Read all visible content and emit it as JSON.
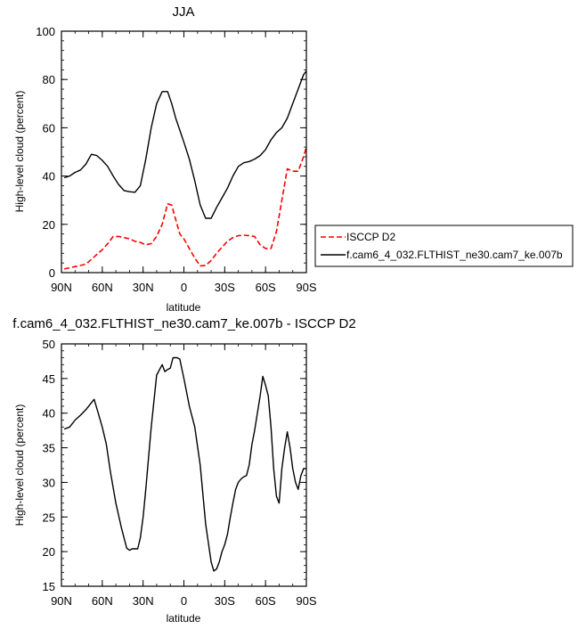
{
  "chart_data": [
    {
      "type": "line",
      "title": "JJA",
      "xlabel": "latitude",
      "ylabel": "High-level cloud (percent)",
      "xlim": [
        90,
        -90
      ],
      "ylim": [
        0,
        100
      ],
      "x_ticks": [
        90,
        60,
        30,
        0,
        -30,
        -60,
        -90
      ],
      "x_tick_labels": [
        "90N",
        "60N",
        "30N",
        "0",
        "30S",
        "60S",
        "90S"
      ],
      "y_ticks": [
        0,
        20,
        40,
        60,
        80,
        100
      ],
      "y_tick_labels": [
        "0",
        "20",
        "40",
        "60",
        "80",
        "100"
      ],
      "legend_position": "right",
      "series": [
        {
          "name": "ISCCP D2",
          "color": "#ff0000",
          "dash": "dashed",
          "x": [
            88,
            84,
            80,
            76,
            72,
            68,
            64,
            60,
            56,
            52,
            48,
            44,
            40,
            36,
            32,
            28,
            24,
            20,
            16,
            12,
            9,
            6,
            3,
            0,
            -4,
            -8,
            -12,
            -16,
            -20,
            -24,
            -28,
            -32,
            -36,
            -40,
            -44,
            -48,
            -52,
            -56,
            -60,
            -64,
            -68,
            -72,
            -76,
            -80,
            -84,
            -88,
            -90
          ],
          "y": [
            1.5,
            2,
            2.5,
            3,
            3.5,
            5.5,
            7.5,
            9.5,
            12,
            15,
            15,
            14.5,
            14,
            13,
            12.5,
            11.5,
            12,
            15,
            20,
            28.5,
            28,
            22,
            16,
            14,
            10,
            6,
            2.8,
            3,
            5,
            8,
            10.5,
            13,
            14.5,
            15.3,
            15.5,
            15.3,
            15,
            11.5,
            10,
            10,
            17,
            30,
            43,
            42,
            42,
            48,
            52
          ]
        },
        {
          "name": "f.cam6_4_032.FLTHIST_ne30.cam7_ke.007b",
          "color": "#000000",
          "dash": "solid",
          "x": [
            88,
            84,
            80,
            76,
            72,
            68,
            64,
            60,
            56,
            52,
            48,
            44,
            40,
            36,
            32,
            28,
            24,
            20,
            16,
            12,
            9,
            6,
            3,
            0,
            -4,
            -8,
            -12,
            -16,
            -20,
            -24,
            -28,
            -32,
            -36,
            -40,
            -44,
            -48,
            -52,
            -56,
            -60,
            -64,
            -68,
            -72,
            -76,
            -80,
            -84,
            -88,
            -90
          ],
          "y": [
            39.3,
            40,
            41.5,
            42.5,
            45,
            49,
            48.5,
            46.5,
            44,
            40,
            36.5,
            34,
            33.5,
            33.3,
            36,
            47,
            60,
            70,
            75,
            75,
            70,
            64,
            59,
            54,
            47,
            38,
            28,
            22.5,
            22.5,
            27,
            31,
            35,
            40,
            44,
            45.5,
            46,
            47,
            48.5,
            51,
            55,
            58,
            60,
            64,
            70,
            76,
            82,
            83.5
          ]
        }
      ]
    },
    {
      "type": "line",
      "title": "f.cam6_4_032.FLTHIST_ne30.cam7_ke.007b - ISCCP D2",
      "xlabel": "latitude",
      "ylabel": "High-level cloud (percent)",
      "xlim": [
        90,
        -90
      ],
      "ylim": [
        15,
        50
      ],
      "x_ticks": [
        90,
        60,
        30,
        0,
        -30,
        -60,
        -90
      ],
      "x_tick_labels": [
        "90N",
        "60N",
        "30N",
        "0",
        "30S",
        "60S",
        "90S"
      ],
      "y_ticks": [
        15,
        20,
        25,
        30,
        35,
        40,
        45,
        50
      ],
      "y_tick_labels": [
        "15",
        "20",
        "25",
        "30",
        "35",
        "40",
        "45",
        "50"
      ],
      "series": [
        {
          "color": "#000000",
          "dash": "solid",
          "x": [
            88,
            84,
            80,
            76,
            72,
            68,
            66,
            63,
            60,
            57,
            54,
            50,
            46,
            42,
            40,
            38,
            36,
            34,
            32,
            30,
            28,
            24,
            20,
            16,
            14,
            12,
            10,
            8,
            5,
            3,
            0,
            -4,
            -8,
            -12,
            -16,
            -20,
            -22,
            -24,
            -26,
            -28,
            -30,
            -32,
            -34,
            -36,
            -38,
            -40,
            -42,
            -44,
            -46,
            -48,
            -50,
            -52,
            -54,
            -56,
            -58,
            -60,
            -62,
            -64,
            -66,
            -68,
            -70,
            -72,
            -74,
            -76,
            -78,
            -80,
            -82,
            -84,
            -86,
            -88,
            -90
          ],
          "y": [
            37.7,
            38,
            39,
            39.7,
            40.5,
            41.5,
            42,
            40,
            38,
            35.5,
            31.5,
            27,
            23.5,
            20.5,
            20.2,
            20.4,
            20.4,
            20.4,
            22,
            25,
            29,
            38,
            45.5,
            47,
            46,
            46.3,
            46.5,
            48,
            48,
            47.8,
            45,
            41,
            38,
            32.5,
            24,
            18.5,
            17.2,
            17.5,
            18.5,
            20,
            21,
            22.5,
            24.8,
            27,
            29,
            30,
            30.5,
            30.8,
            31,
            32.5,
            35.5,
            37.5,
            40,
            42.5,
            45.3,
            44,
            42.5,
            38,
            32,
            28,
            27,
            32,
            35,
            37.3,
            35,
            32,
            30,
            29,
            31,
            32,
            32
          ]
        }
      ]
    }
  ]
}
